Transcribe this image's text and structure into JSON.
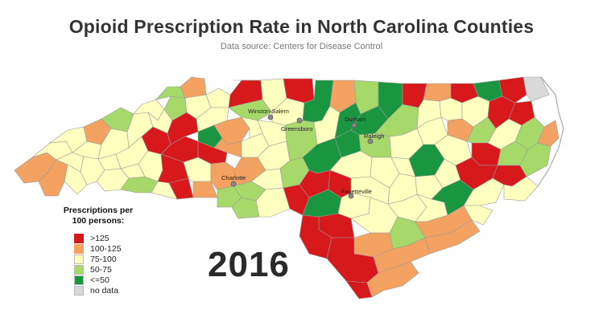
{
  "title": "Opioid Prescription Rate in North Carolina Counties",
  "subtitle": "Data source: Centers for Disease Control",
  "year": "2016",
  "legend": {
    "title_line1": "Prescriptions per",
    "title_line2": "100 persons:",
    "items": [
      {
        "label": ">125",
        "color": "#d7191c"
      },
      {
        "label": "100-125",
        "color": "#f4a261"
      },
      {
        "label": "75-100",
        "color": "#ffffbf"
      },
      {
        "label": "50-75",
        "color": "#a6d96a"
      },
      {
        "label": "<=50",
        "color": "#1a9641"
      },
      {
        "label": "no data",
        "color": "#d9d9d9"
      }
    ]
  },
  "cities": [
    {
      "name": "Winston-Salem"
    },
    {
      "name": "Greensboro"
    },
    {
      "name": "Durham"
    },
    {
      "name": "Raleigh"
    },
    {
      "name": "Charlotte"
    },
    {
      "name": "Fayetteville"
    }
  ]
}
